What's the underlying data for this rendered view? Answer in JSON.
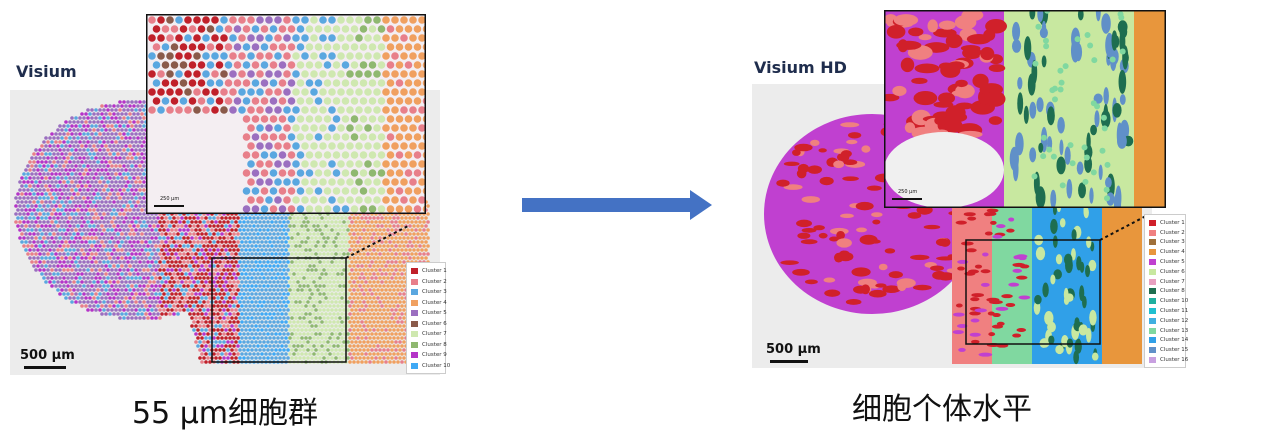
{
  "left": {
    "title": "Visium",
    "scalebar": "500 µm",
    "inset_scalebar": "250 µm",
    "caption": "55 µm细胞群",
    "legend": [
      {
        "label": "Cluster 1",
        "color": "#c0202a"
      },
      {
        "label": "Cluster 2",
        "color": "#e87f8a"
      },
      {
        "label": "Cluster 3",
        "color": "#5aa7e0"
      },
      {
        "label": "Cluster 4",
        "color": "#f0a060"
      },
      {
        "label": "Cluster 5",
        "color": "#9b6fc0"
      },
      {
        "label": "Cluster 6",
        "color": "#8a5a4a"
      },
      {
        "label": "Cluster 7",
        "color": "#cfe8b0"
      },
      {
        "label": "Cluster 8",
        "color": "#8fb870"
      },
      {
        "label": "Cluster 9",
        "color": "#b534c8"
      },
      {
        "label": "Cluster 10",
        "color": "#3fa9f5"
      }
    ]
  },
  "right": {
    "title": "Visium HD",
    "scalebar": "500 µm",
    "inset_scalebar": "250 µm",
    "caption": "细胞个体水平",
    "legend": [
      {
        "label": "Cluster 1",
        "color": "#d0202a"
      },
      {
        "label": "Cluster 2",
        "color": "#f08080"
      },
      {
        "label": "Cluster 3",
        "color": "#a0703a"
      },
      {
        "label": "Cluster 4",
        "color": "#e8963c"
      },
      {
        "label": "Cluster 5",
        "color": "#c040d0"
      },
      {
        "label": "Cluster 6",
        "color": "#c8e8a0"
      },
      {
        "label": "Cluster 7",
        "color": "#e8a0c0"
      },
      {
        "label": "Cluster 8",
        "color": "#1e6e50"
      },
      {
        "label": "Cluster 10",
        "color": "#20b0a0"
      },
      {
        "label": "Cluster 11",
        "color": "#20c0d0"
      },
      {
        "label": "Cluster 12",
        "color": "#40b0e0"
      },
      {
        "label": "Cluster 13",
        "color": "#80d8a0"
      },
      {
        "label": "Cluster 14",
        "color": "#30a0e8"
      },
      {
        "label": "Cluster 15",
        "color": "#6090c8"
      },
      {
        "label": "Cluster 16",
        "color": "#c8a0e0"
      }
    ]
  },
  "arrow": {
    "color": "#4472c4"
  }
}
